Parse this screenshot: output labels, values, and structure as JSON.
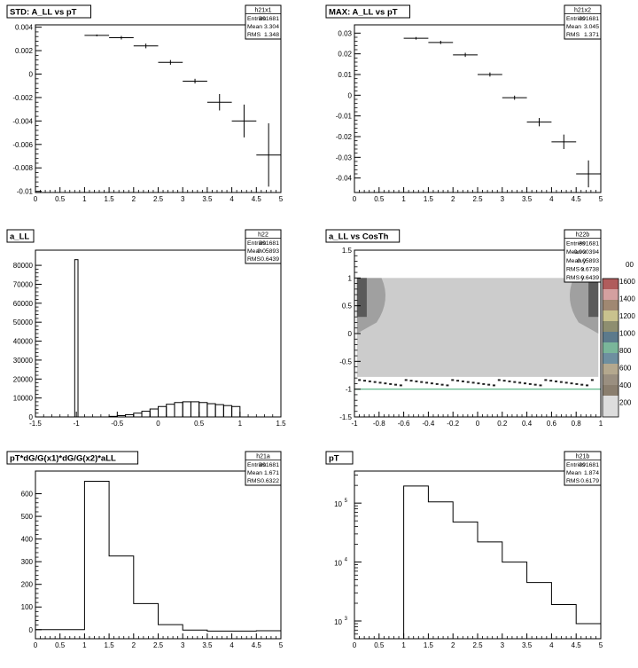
{
  "colors": {
    "axis": "#000000",
    "frame": "#000000",
    "heat_light": "#cccccc",
    "heat_mid": "#a0a0a0",
    "heat_dark": "#5a5a5a",
    "heat_line": "#4caf7d"
  },
  "chart_data": [
    {
      "id": "h21x1",
      "type": "scatter",
      "title": "STD: A_LL vs pT",
      "xlim": [
        0,
        5
      ],
      "ylim": [
        -0.0101,
        0.0042
      ],
      "x_ticks": [
        "0",
        "0.5",
        "1",
        "1.5",
        "2",
        "2.5",
        "3",
        "3.5",
        "4",
        "4.5",
        "5"
      ],
      "y_ticks": [
        "0.004",
        "0.002",
        "0",
        "-0.002",
        "-0.004",
        "-0.006",
        "-0.008",
        "-0.01"
      ],
      "x": [
        1.25,
        1.75,
        2.25,
        2.75,
        3.25,
        3.75,
        4.25,
        4.75
      ],
      "values": [
        0.0033,
        0.0031,
        0.0024,
        0.001,
        -0.0006,
        -0.0024,
        -0.004,
        -0.0069
      ],
      "y_err": [
        8e-05,
        0.00015,
        0.0002,
        0.0002,
        0.0002,
        0.0007,
        0.0014,
        0.0027
      ],
      "x_err": 0.25,
      "stats": {
        "name": "h21x1",
        "rows": [
          [
            "Entries",
            "391681"
          ],
          [
            "Mean",
            "3.304"
          ],
          [
            "RMS",
            "1.348"
          ]
        ]
      }
    },
    {
      "id": "h21x2",
      "type": "scatter",
      "title": "MAX: A_LL vs pT",
      "xlim": [
        0,
        5
      ],
      "ylim": [
        -0.047,
        0.034
      ],
      "x_ticks": [
        "0",
        "0.5",
        "1",
        "1.5",
        "2",
        "2.5",
        "3",
        "3.5",
        "4",
        "4.5",
        "5"
      ],
      "y_ticks": [
        "0.03",
        "0.02",
        "0.01",
        "0",
        "-0.01",
        "-0.02",
        "-0.03",
        "-0.04"
      ],
      "x": [
        1.25,
        1.75,
        2.25,
        2.75,
        3.25,
        3.75,
        4.25,
        4.75
      ],
      "values": [
        0.0275,
        0.0255,
        0.0195,
        0.01,
        -0.0012,
        -0.013,
        -0.0225,
        -0.038
      ],
      "y_err": [
        0.0006,
        0.0008,
        0.001,
        0.001,
        0.001,
        0.002,
        0.0035,
        0.0065
      ],
      "x_err": 0.25,
      "stats": {
        "name": "h21x2",
        "rows": [
          [
            "Entries",
            "391681"
          ],
          [
            "Mean",
            "3.045"
          ],
          [
            "RMS",
            "1.371"
          ]
        ]
      }
    },
    {
      "id": "h22",
      "type": "bar",
      "title": "a_LL",
      "xlim": [
        -1.5,
        1.5
      ],
      "ylim": [
        0,
        88000
      ],
      "x_ticks": [
        "-1.5",
        "-1",
        "-0.5",
        "0",
        "0.5",
        "1",
        "1.5"
      ],
      "y_ticks": [
        "80000",
        "70000",
        "60000",
        "50000",
        "40000",
        "30000",
        "20000",
        "10000",
        "0"
      ],
      "x": [
        -0.5,
        -0.4,
        -0.3,
        -0.2,
        -0.1,
        0.0,
        0.1,
        0.2,
        0.3,
        0.4,
        0.5,
        0.6,
        0.7,
        0.8,
        0.9,
        1.0
      ],
      "values": [
        300,
        700,
        1200,
        2000,
        3000,
        4200,
        5500,
        6700,
        7600,
        8000,
        8000,
        7600,
        7000,
        6500,
        6000,
        5500
      ],
      "spike": {
        "x0": -1.02,
        "x1": -0.98,
        "value": 83000
      },
      "stats": {
        "name": "h22",
        "rows": [
          [
            "Entries",
            "391681"
          ],
          [
            "Mean",
            "0.05893"
          ],
          [
            "RMS",
            "0.6439"
          ]
        ]
      }
    },
    {
      "id": "h22b",
      "type": "heatmap",
      "title": "a_LL vs CosTh",
      "xlim": [
        -1,
        1
      ],
      "ylim": [
        -1.5,
        1.5
      ],
      "x_ticks": [
        "-1",
        "-0.8",
        "-0.6",
        "-0.4",
        "-0.2",
        "0",
        "0.2",
        "0.4",
        "0.6",
        "0.8",
        "1"
      ],
      "y_ticks": [
        "1.5",
        "1",
        "0.5",
        "0",
        "-0.5",
        "-1",
        "-1.5"
      ],
      "palette_labels": [
        "1600",
        "1400",
        "1200",
        "1000",
        "800",
        "600",
        "400",
        "200"
      ],
      "palette_edge_label": "00",
      "stats": {
        "name": "h22b",
        "rows": [
          [
            "Entries",
            "391681"
          ],
          [
            "Mean x",
            "-0.000394"
          ],
          [
            "Mean y",
            "0.05893"
          ],
          [
            "RMS x",
            "0.6738"
          ],
          [
            "RMS y",
            "0.6439"
          ]
        ]
      }
    },
    {
      "id": "h21a",
      "type": "bar",
      "title": "pT*dG/G(x1)*dG/G(x2)*aLL",
      "xlim": [
        0,
        5
      ],
      "ylim": [
        -40,
        700
      ],
      "x_ticks": [
        "0",
        "0.5",
        "1",
        "1.5",
        "2",
        "2.5",
        "3",
        "3.5",
        "4",
        "4.5",
        "5"
      ],
      "y_ticks": [
        "600",
        "500",
        "400",
        "300",
        "200",
        "100",
        "0"
      ],
      "bin_edges": [
        0,
        0.5,
        1,
        1.5,
        2,
        2.5,
        3,
        3.5,
        4,
        4.5,
        5
      ],
      "values": [
        0,
        0,
        655,
        325,
        115,
        22,
        -2,
        -6,
        -6,
        -5
      ],
      "stats": {
        "name": "h21a",
        "rows": [
          [
            "Entries",
            "391681"
          ],
          [
            "Mean",
            "1.671"
          ],
          [
            "RMS",
            "0.6322"
          ]
        ]
      }
    },
    {
      "id": "h21b",
      "type": "bar",
      "log_y": true,
      "title": "pT",
      "xlim": [
        0,
        5
      ],
      "ylim": [
        500,
        350000
      ],
      "x_ticks": [
        "0",
        "0.5",
        "1",
        "1.5",
        "2",
        "2.5",
        "3",
        "3.5",
        "4",
        "4.5",
        "5"
      ],
      "y_ticks": [
        {
          "value": 100000,
          "base": "10",
          "exp": "5"
        },
        {
          "value": 10000,
          "base": "10",
          "exp": "4"
        },
        {
          "value": 1000,
          "base": "10",
          "exp": "3"
        }
      ],
      "bin_edges": [
        1,
        1.5,
        2,
        2.5,
        3,
        3.5,
        4,
        4.5,
        5
      ],
      "values": [
        195000,
        105000,
        48000,
        22000,
        10000,
        4500,
        1900,
        900
      ],
      "stats": {
        "name": "h21b",
        "rows": [
          [
            "Entries",
            "391681"
          ],
          [
            "Mean",
            "1.874"
          ],
          [
            "RMS",
            "0.6179"
          ]
        ]
      }
    }
  ]
}
